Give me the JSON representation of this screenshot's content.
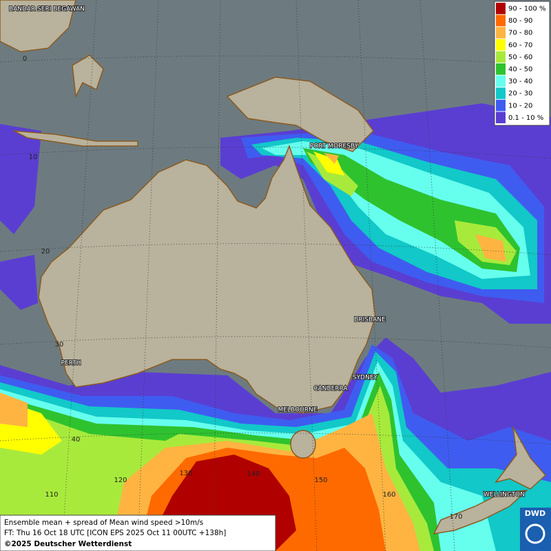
{
  "legend": [
    {
      "label": "90 - 100 %",
      "color": "#b00000"
    },
    {
      "label": "80 - 90",
      "color": "#ff6a00"
    },
    {
      "label": "70 - 80",
      "color": "#ffb441"
    },
    {
      "label": "60 - 70",
      "color": "#ffff00"
    },
    {
      "label": "50 - 60",
      "color": "#a8ea3c"
    },
    {
      "label": "40 - 50",
      "color": "#2fc22f"
    },
    {
      "label": "30 - 40",
      "color": "#66ffee"
    },
    {
      "label": "20 - 30",
      "color": "#12c8c8"
    },
    {
      "label": "10 - 20",
      "color": "#3f5cf0"
    },
    {
      "label": "0.1 - 10 %",
      "color": "#5a3ed2"
    }
  ],
  "cities": [
    "BANDAR SERI BEGAWAN",
    "PORT MORESBY",
    "BRISBANE",
    "PERTH",
    "SYDNEY",
    "CANBERRA",
    "MELBOURNE",
    "WELLINGTON"
  ],
  "latitudes": [
    0,
    10,
    20,
    30,
    40
  ],
  "longitudes": [
    110,
    120,
    130,
    140,
    150,
    160,
    170
  ],
  "info": {
    "line1": "Ensemble mean + spread of Mean wind speed >10m/s",
    "line2": "FT: Thu 16 Oct 18 UTC [ICON EPS 2025 Oct 11 00UTC +138h]",
    "line3": "©2025 Deutscher Wetterdienst"
  },
  "logo": "DWD"
}
